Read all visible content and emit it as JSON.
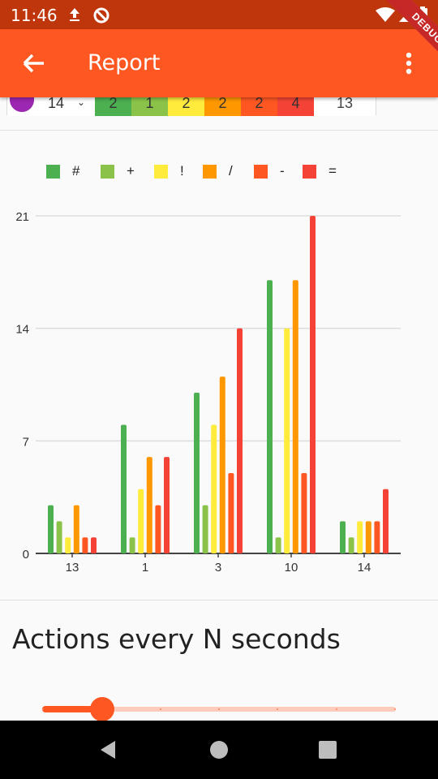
{
  "status": {
    "time": "11:46"
  },
  "app_bar": {
    "title": "Report"
  },
  "debug_label": "DEBUG",
  "summary": {
    "count": "14",
    "cells": [
      {
        "value": "2",
        "color": "#4caf50"
      },
      {
        "value": "1",
        "color": "#8bc34a"
      },
      {
        "value": "2",
        "color": "#ffeb3b"
      },
      {
        "value": "2",
        "color": "#ff9800"
      },
      {
        "value": "2",
        "color": "#ff5722"
      },
      {
        "value": "4",
        "color": "#f44336"
      }
    ],
    "total": "13"
  },
  "chart_data": {
    "type": "bar",
    "categories": [
      "13",
      "1",
      "3",
      "10",
      "14"
    ],
    "series": [
      {
        "name": "#",
        "color": "#4caf50",
        "values": [
          3,
          8,
          10,
          17,
          2
        ]
      },
      {
        "name": "+",
        "color": "#8bc34a",
        "values": [
          2,
          1,
          3,
          1,
          1
        ]
      },
      {
        "name": "!",
        "color": "#ffeb3b",
        "values": [
          1,
          4,
          8,
          14,
          2
        ]
      },
      {
        "name": "/",
        "color": "#ff9800",
        "values": [
          3,
          6,
          11,
          17,
          2
        ]
      },
      {
        "name": "-",
        "color": "#ff5722",
        "values": [
          1,
          3,
          5,
          5,
          2
        ]
      },
      {
        "name": "=",
        "color": "#f44336",
        "values": [
          1,
          6,
          14,
          21,
          4
        ]
      }
    ],
    "yticks": [
      0,
      7,
      14,
      21
    ],
    "ylim": [
      0,
      21
    ],
    "grid": true,
    "legend_position": "top"
  },
  "section": {
    "title": "Actions every N seconds"
  },
  "slider": {
    "value_fraction": 0.17,
    "divisions": 6
  }
}
